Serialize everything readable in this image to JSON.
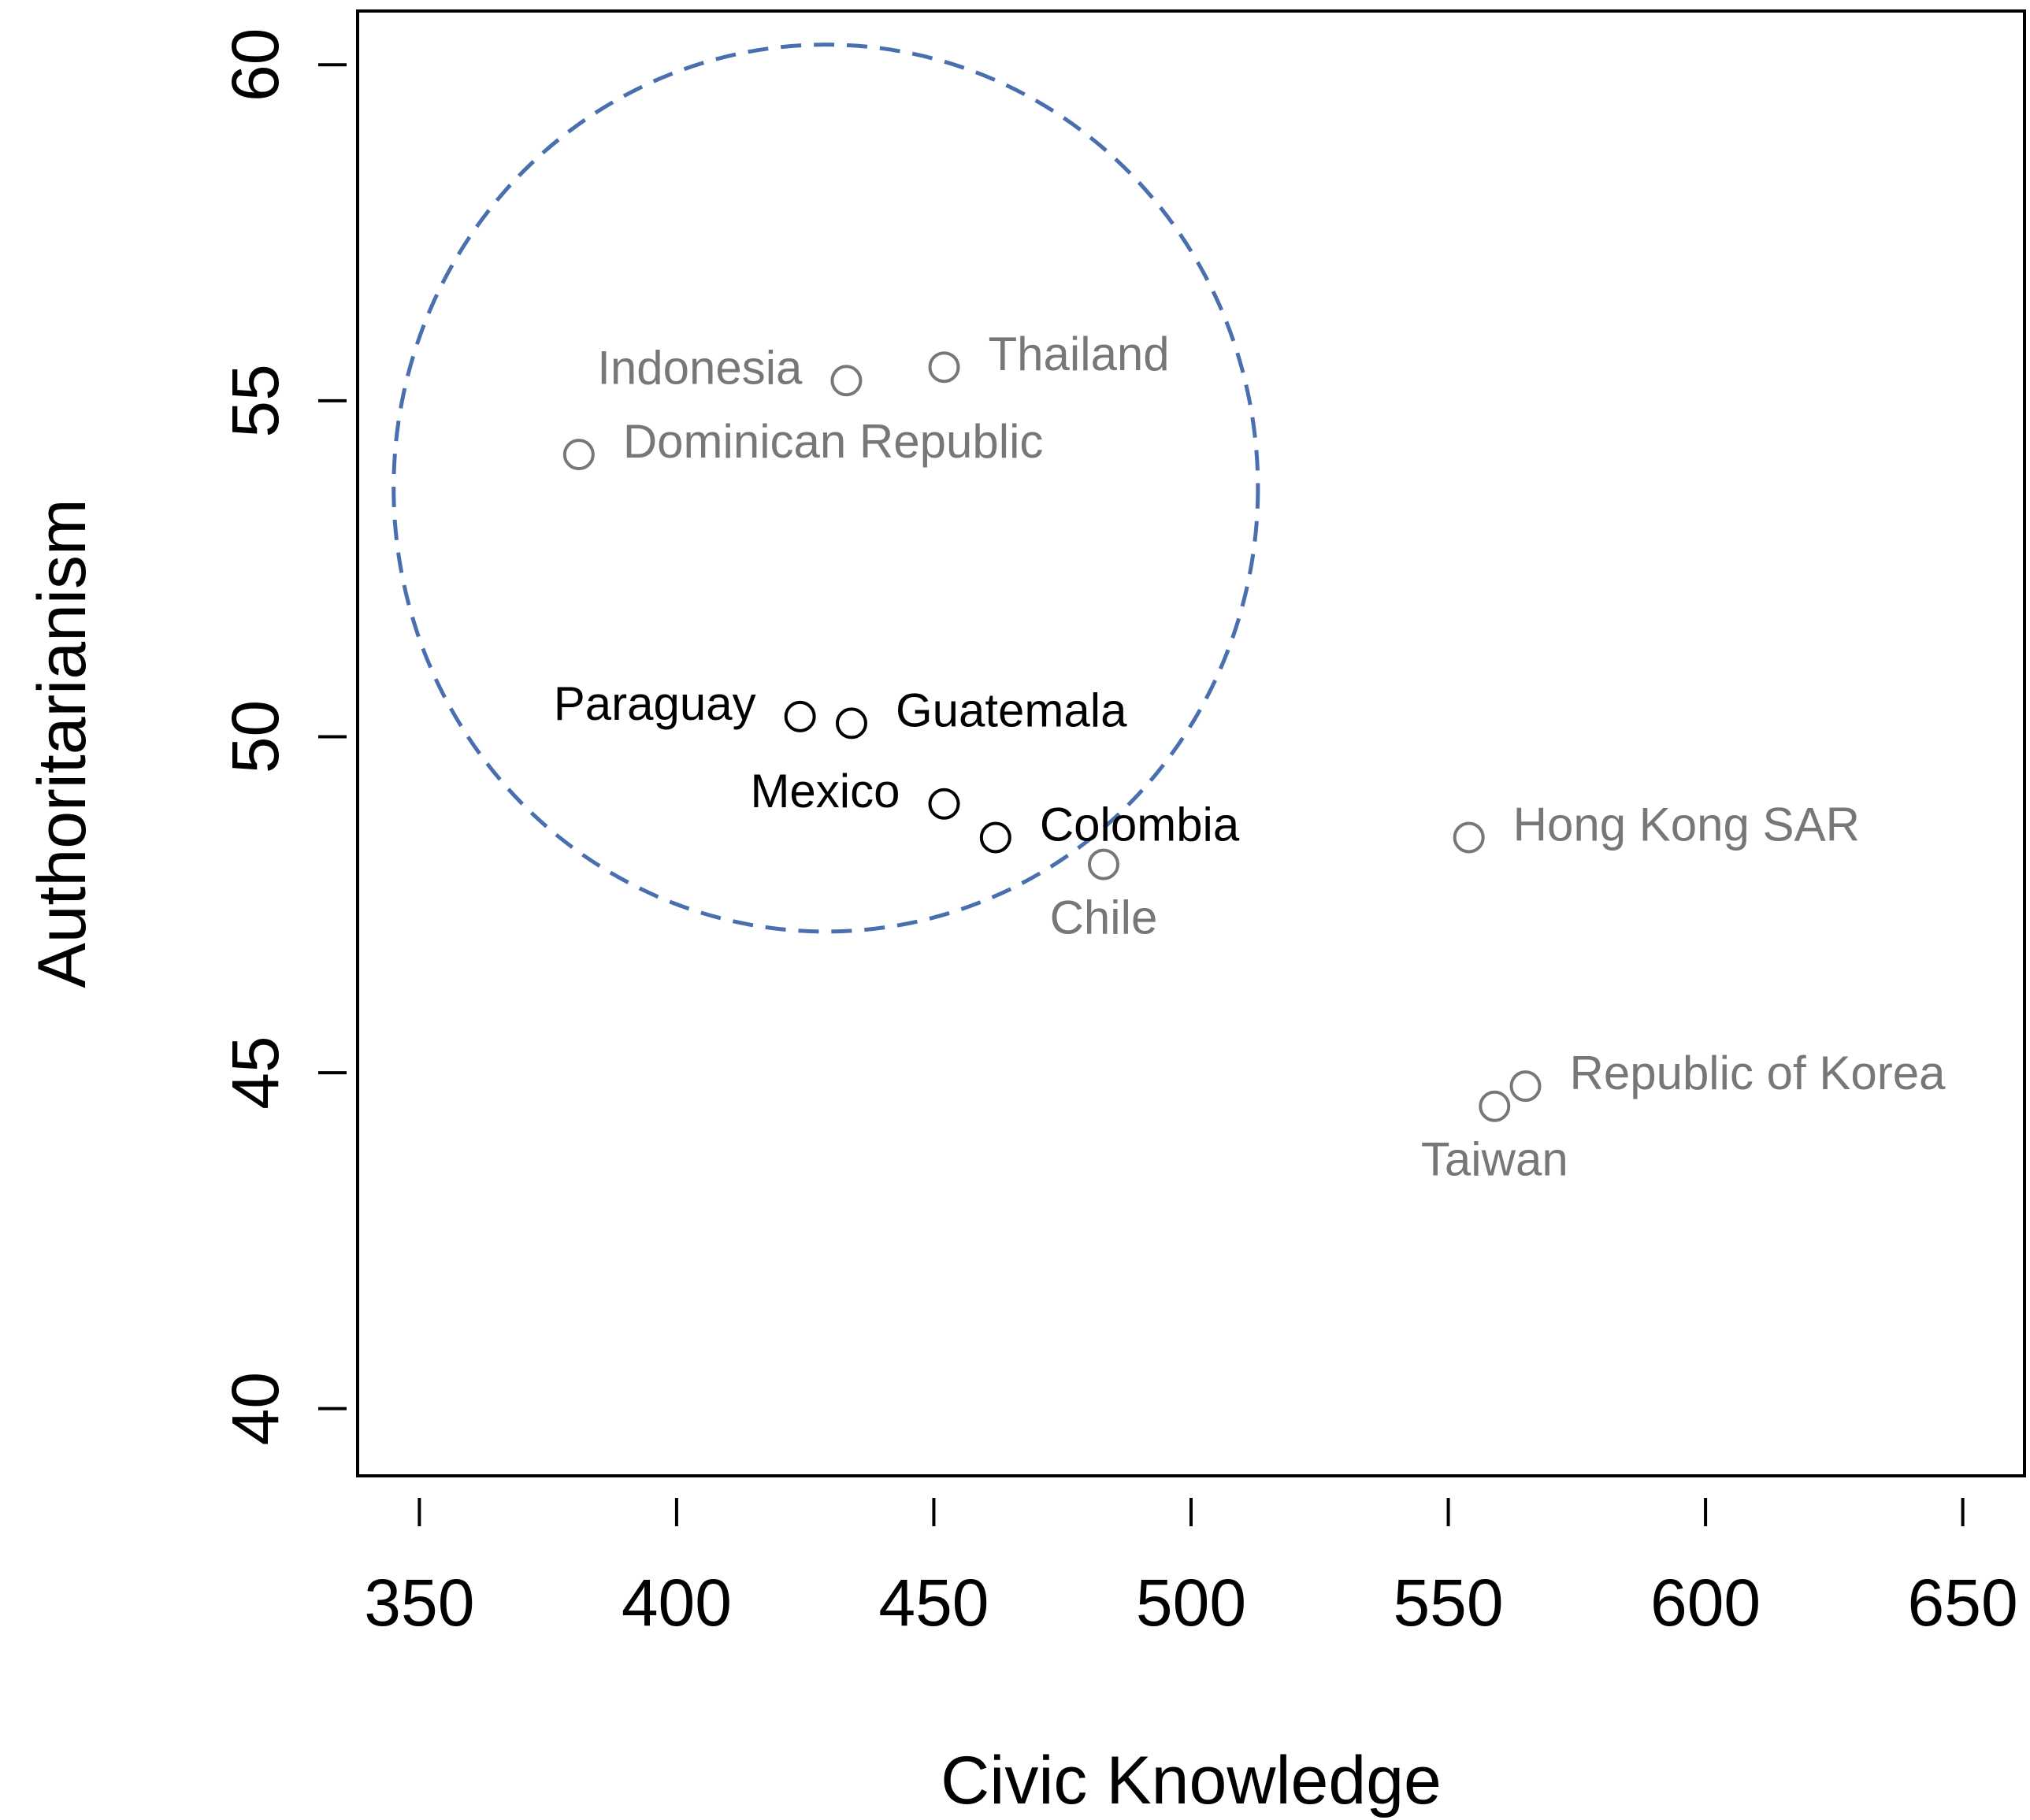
{
  "chart_data": {
    "type": "scatter",
    "title": "",
    "xlabel": "Civic Knowledge",
    "ylabel": "Authoritarianism",
    "xlim": [
      338,
      662
    ],
    "ylim": [
      39,
      60.8
    ],
    "xticks": [
      350,
      400,
      450,
      500,
      550,
      600,
      650
    ],
    "yticks": [
      40,
      45,
      50,
      55,
      60
    ],
    "grid": false,
    "legend": "none",
    "points": [
      {
        "label": "Indonesia",
        "x": 433,
        "y": 55.3,
        "color": "#777777",
        "anchor": "left"
      },
      {
        "label": "Thailand",
        "x": 452,
        "y": 55.5,
        "color": "#777777",
        "anchor": "right"
      },
      {
        "label": "Dominican Republic",
        "x": 381,
        "y": 54.2,
        "color": "#777777",
        "anchor": "right"
      },
      {
        "label": "Paraguay",
        "x": 424,
        "y": 50.3,
        "color": "#000000",
        "anchor": "left"
      },
      {
        "label": "Guatemala",
        "x": 434,
        "y": 50.2,
        "color": "#000000",
        "anchor": "right"
      },
      {
        "label": "Mexico",
        "x": 452,
        "y": 49.0,
        "color": "#000000",
        "anchor": "left"
      },
      {
        "label": "Colombia",
        "x": 462,
        "y": 48.5,
        "color": "#000000",
        "anchor": "right"
      },
      {
        "label": "Chile",
        "x": 483,
        "y": 48.1,
        "color": "#777777",
        "anchor": "below"
      },
      {
        "label": "Hong Kong SAR",
        "x": 554,
        "y": 48.5,
        "color": "#777777",
        "anchor": "right"
      },
      {
        "label": "Republic of Korea",
        "x": 565,
        "y": 44.8,
        "color": "#777777",
        "anchor": "right"
      },
      {
        "label": "Taiwan",
        "x": 559,
        "y": 44.5,
        "color": "#777777",
        "anchor": "below"
      }
    ],
    "annotation": {
      "shape": "dashed-ellipse",
      "color": "#4a6fae",
      "center": {
        "x": 429,
        "y": 53.7
      },
      "radius_x": 84,
      "radius_y": 6.6
    }
  }
}
